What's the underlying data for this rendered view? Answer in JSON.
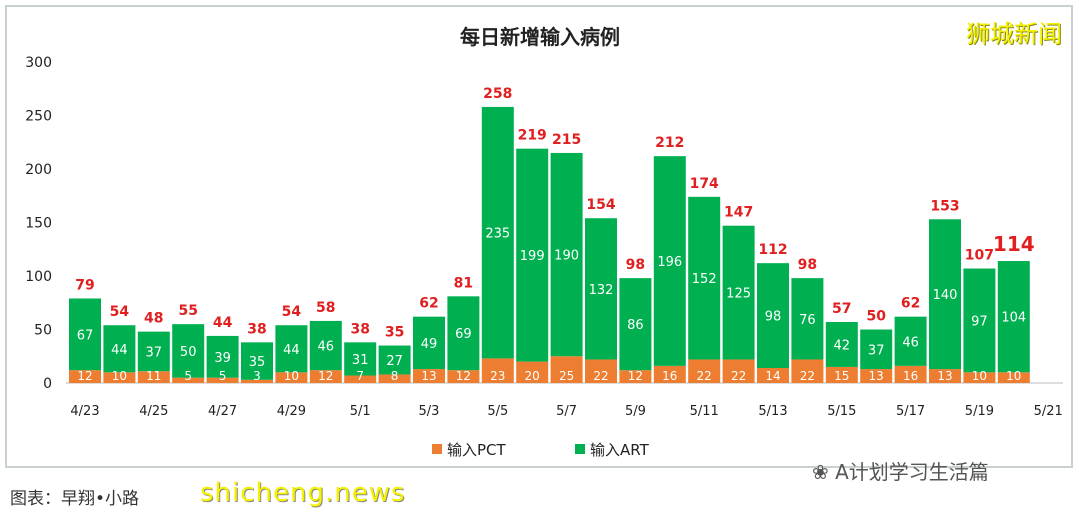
{
  "chart_data": {
    "type": "bar",
    "stacked": true,
    "title": "每日新增输入病例",
    "categories": [
      "4/23",
      "4/24",
      "4/25",
      "4/26",
      "4/27",
      "4/28",
      "4/29",
      "4/30",
      "5/1",
      "5/2",
      "5/3",
      "5/4",
      "5/5",
      "5/6",
      "5/7",
      "5/8",
      "5/9",
      "5/10",
      "5/11",
      "5/12",
      "5/13",
      "5/14",
      "5/15",
      "5/16",
      "5/17",
      "5/18",
      "5/19",
      "5/20",
      "5/21"
    ],
    "x_tick_labels": [
      "4/23",
      "4/25",
      "4/27",
      "4/29",
      "5/1",
      "5/3",
      "5/5",
      "5/7",
      "5/9",
      "5/11",
      "5/13",
      "5/15",
      "5/17",
      "5/19",
      "5/21"
    ],
    "series": [
      {
        "name": "输入PCT",
        "color": "#ed7d31",
        "values": [
          12,
          10,
          11,
          5,
          5,
          3,
          10,
          12,
          7,
          8,
          13,
          12,
          23,
          20,
          25,
          22,
          12,
          16,
          22,
          22,
          14,
          22,
          15,
          13,
          16,
          13,
          10,
          10,
          null
        ]
      },
      {
        "name": "输入ART",
        "color": "#00b050",
        "values": [
          67,
          44,
          37,
          50,
          39,
          35,
          44,
          46,
          31,
          27,
          49,
          69,
          235,
          199,
          190,
          132,
          86,
          196,
          152,
          125,
          98,
          76,
          42,
          37,
          46,
          140,
          97,
          104,
          null
        ]
      }
    ],
    "totals": [
      79,
      54,
      48,
      55,
      44,
      38,
      54,
      58,
      38,
      35,
      62,
      81,
      258,
      219,
      215,
      154,
      98,
      212,
      174,
      147,
      112,
      98,
      57,
      50,
      62,
      153,
      107,
      114,
      null
    ],
    "total_label_color": "#e02020",
    "ylim": [
      0,
      300
    ],
    "y_ticks": [
      0,
      50,
      100,
      150,
      200,
      250,
      300
    ],
    "grid": false,
    "legend": "bottom"
  },
  "logo_text": "狮城新闻",
  "footer_text": "图表：早翔•小路",
  "watermark": "shicheng.news",
  "wechat_source": "A计划学习生活篇"
}
